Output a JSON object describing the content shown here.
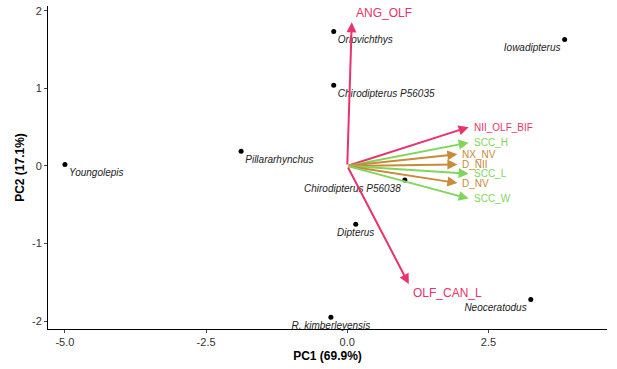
{
  "chart_data": {
    "type": "biplot",
    "x_label": "PC1 (69.9%)",
    "y_label": "PC2 (17.1%)",
    "xlim": [
      -5.3,
      4.6
    ],
    "ylim": [
      -2.1,
      2.06
    ],
    "xticks": [
      {
        "value": -5,
        "label": "-5.0"
      },
      {
        "value": -2.5,
        "label": "-2.5"
      },
      {
        "value": 0,
        "label": "0.0"
      },
      {
        "value": 2.5,
        "label": "2.5"
      }
    ],
    "yticks": [
      -2,
      -1,
      0,
      1,
      2
    ],
    "grid": false,
    "points": [
      {
        "label": "Orlovichthys",
        "x": -0.24,
        "y": 1.73
      },
      {
        "label": "Chirodipterus P56035",
        "x": -0.24,
        "y": 1.04
      },
      {
        "label": "Iowadipterus",
        "x": 3.85,
        "y": 1.63
      },
      {
        "label": "Youngolepis",
        "x": -5.0,
        "y": 0.02
      },
      {
        "label": "Pillararhynchus",
        "x": -1.88,
        "y": 0.19
      },
      {
        "label": "Chirodipterus P56038",
        "x": 1.02,
        "y": -0.18
      },
      {
        "label": "Dipterus",
        "x": 0.15,
        "y": -0.75
      },
      {
        "label": "R. kimberleyensis",
        "x": -0.29,
        "y": -1.95
      },
      {
        "label": "Neoceratodus",
        "x": 3.25,
        "y": -1.72
      }
    ],
    "vectors": [
      {
        "label": "ANG_OLF",
        "x": 0.08,
        "y": 1.85,
        "color": "#e8336b"
      },
      {
        "label": "NII_OLF_BIF",
        "x": 2.15,
        "y": 0.5,
        "color": "#e8336b"
      },
      {
        "label": "SCC_H",
        "x": 2.15,
        "y": 0.3,
        "color": "#7fd65a"
      },
      {
        "label": "NX_NV",
        "x": 1.95,
        "y": 0.15,
        "color": "#c98a3a"
      },
      {
        "label": "D_NII",
        "x": 1.95,
        "y": 0.02,
        "color": "#c98a3a"
      },
      {
        "label": "SCC_L",
        "x": 2.15,
        "y": -0.1,
        "color": "#7fd65a"
      },
      {
        "label": "D_NV",
        "x": 1.95,
        "y": -0.22,
        "color": "#c98a3a"
      },
      {
        "label": "SCC_W",
        "x": 2.15,
        "y": -0.42,
        "color": "#7fd65a"
      },
      {
        "label": "OLF_CAN_L",
        "x": 1.09,
        "y": -1.52,
        "color": "#e8336b"
      }
    ]
  }
}
